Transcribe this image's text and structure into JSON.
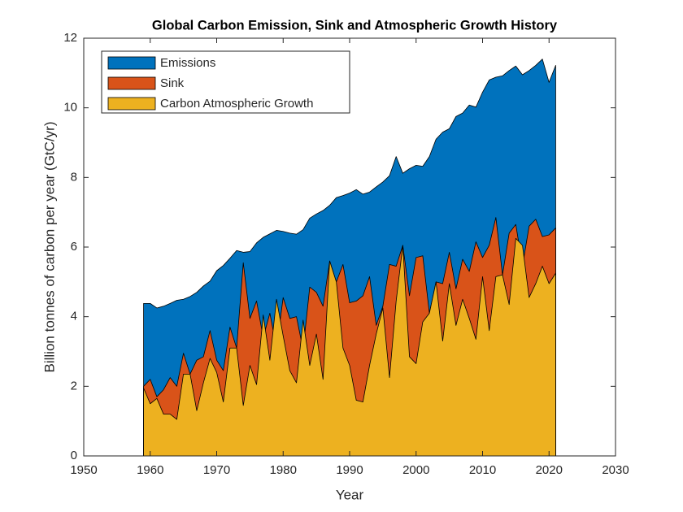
{
  "chart_data": {
    "type": "area",
    "title": "Global Carbon Emission, Sink and Atmospheric Growth History",
    "x_label": "Year",
    "y_label": "Billion tonnes of carbon per year (GtC/yr)",
    "x": [
      1959,
      1960,
      1961,
      1962,
      1963,
      1964,
      1965,
      1966,
      1967,
      1968,
      1969,
      1970,
      1971,
      1972,
      1973,
      1974,
      1975,
      1976,
      1977,
      1978,
      1979,
      1980,
      1981,
      1982,
      1983,
      1984,
      1985,
      1986,
      1987,
      1988,
      1989,
      1990,
      1991,
      1992,
      1993,
      1994,
      1995,
      1996,
      1997,
      1998,
      1999,
      2000,
      2001,
      2002,
      2003,
      2004,
      2005,
      2006,
      2007,
      2008,
      2009,
      2010,
      2011,
      2012,
      2013,
      2014,
      2015,
      2016,
      2017,
      2018,
      2019,
      2020,
      2021
    ],
    "series": [
      {
        "name": "Emissions",
        "color": "#0072BD",
        "values": [
          4.38,
          4.38,
          4.25,
          4.3,
          4.38,
          4.47,
          4.5,
          4.58,
          4.7,
          4.88,
          5.02,
          5.32,
          5.47,
          5.68,
          5.9,
          5.85,
          5.87,
          6.12,
          6.28,
          6.38,
          6.48,
          6.45,
          6.4,
          6.37,
          6.5,
          6.83,
          6.95,
          7.05,
          7.2,
          7.42,
          7.48,
          7.55,
          7.65,
          7.52,
          7.58,
          7.73,
          7.87,
          8.05,
          8.6,
          8.12,
          8.25,
          8.35,
          8.32,
          8.6,
          9.1,
          9.3,
          9.4,
          9.75,
          9.85,
          10.08,
          10.02,
          10.45,
          10.8,
          10.88,
          10.92,
          11.07,
          11.2,
          10.95,
          11.07,
          11.22,
          11.4,
          10.73,
          11.22
        ]
      },
      {
        "name": "Sink",
        "color": "#D95319",
        "values": [
          2.0,
          2.2,
          1.7,
          1.9,
          2.25,
          2.0,
          2.95,
          2.35,
          2.75,
          2.85,
          3.6,
          2.75,
          2.45,
          3.7,
          3.1,
          5.55,
          3.95,
          4.45,
          3.4,
          4.1,
          3.1,
          4.55,
          3.95,
          4.0,
          3.05,
          4.85,
          4.7,
          4.3,
          5.6,
          5.0,
          5.5,
          4.4,
          4.45,
          4.6,
          5.15,
          3.75,
          4.3,
          5.5,
          5.45,
          6.05,
          4.6,
          5.7,
          5.75,
          4.1,
          5.0,
          4.95,
          5.85,
          4.8,
          5.65,
          5.3,
          6.15,
          5.7,
          6.05,
          6.85,
          5.2,
          6.4,
          6.65,
          5.45,
          6.6,
          6.8,
          6.3,
          6.35,
          6.55
        ]
      },
      {
        "name": "Carbon Atmospheric Growth",
        "color": "#EDB120",
        "values": [
          1.95,
          1.5,
          1.65,
          1.2,
          1.2,
          1.05,
          2.35,
          2.35,
          1.3,
          2.1,
          2.8,
          2.4,
          1.55,
          3.1,
          3.1,
          1.45,
          2.6,
          2.05,
          4.05,
          2.75,
          4.5,
          3.45,
          2.45,
          2.1,
          3.9,
          2.6,
          3.5,
          2.2,
          5.6,
          5.0,
          3.1,
          2.6,
          1.6,
          1.55,
          2.6,
          3.5,
          4.25,
          2.25,
          4.45,
          6.05,
          2.85,
          2.65,
          3.85,
          4.1,
          5.0,
          3.3,
          4.95,
          3.75,
          4.5,
          3.95,
          3.35,
          5.15,
          3.6,
          5.15,
          5.2,
          4.35,
          6.25,
          6.05,
          4.55,
          4.95,
          5.45,
          4.95,
          5.25
        ]
      }
    ],
    "xlim": [
      1950,
      2030
    ],
    "xticks": [
      1950,
      1960,
      1970,
      1980,
      1990,
      2000,
      2010,
      2020,
      2030
    ],
    "ylim": [
      0,
      12
    ],
    "yticks": [
      0,
      2,
      4,
      6,
      8,
      10,
      12
    ],
    "legend": "top-left",
    "grid": false
  }
}
